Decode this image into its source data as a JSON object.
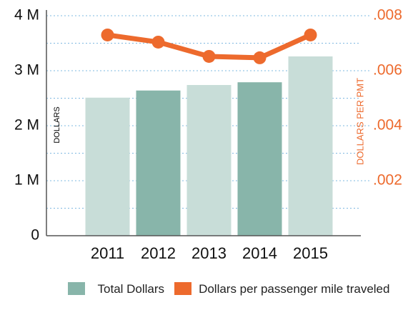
{
  "chart_data": {
    "type": "bar_line",
    "categories": [
      "2011",
      "2012",
      "2013",
      "2014",
      "2015"
    ],
    "series": [
      {
        "name": "Total Dollars",
        "type": "bar",
        "color": "#88b5aa",
        "colors": [
          "#c8ddd8",
          "#88b5aa",
          "#c8ddd8",
          "#88b5aa",
          "#c8ddd8"
        ],
        "values": [
          2510000,
          2640000,
          2740000,
          2790000,
          3260000
        ]
      },
      {
        "name": "Dollars per passenger mile traveled",
        "type": "line",
        "axis": "y2",
        "color": "#ed6a2d",
        "values": [
          0.0073,
          0.00704,
          0.00652,
          0.00647,
          0.0073
        ]
      }
    ],
    "ylabel": "DOLLARS",
    "y2label": "DOLLARS PER PMT",
    "ylim": [
      0,
      4000000
    ],
    "yticks": [
      {
        "value": 0,
        "label": "0"
      },
      {
        "value": 1000000,
        "label": "1 M"
      },
      {
        "value": 2000000,
        "label": "2 M"
      },
      {
        "value": 3000000,
        "label": "3 M"
      },
      {
        "value": 4000000,
        "label": "4 M"
      }
    ],
    "minor_yticks": [
      500000,
      1500000,
      2500000,
      3500000
    ],
    "y2lim": [
      0,
      0.008
    ],
    "y2ticks": [
      {
        "value": 0.002,
        "label": ".002"
      },
      {
        "value": 0.004,
        "label": ".004"
      },
      {
        "value": 0.006,
        "label": ".006"
      },
      {
        "value": 0.008,
        "label": ".008"
      }
    ],
    "grid": true
  }
}
